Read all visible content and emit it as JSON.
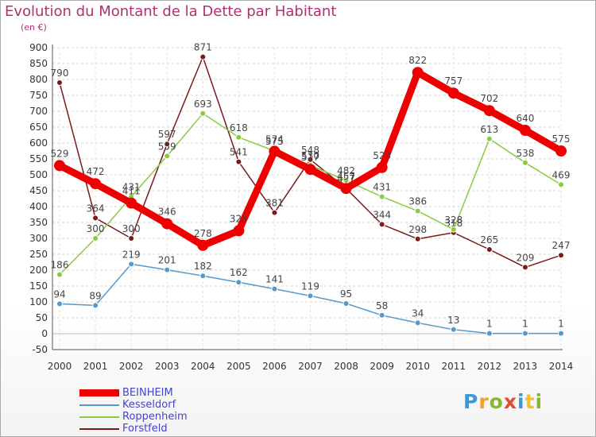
{
  "title": "Evolution du Montant de la Dette par Habitant",
  "unit": "(en €)",
  "logo": {
    "letters": [
      "P",
      "r",
      "o",
      "x",
      "i",
      "t",
      "i"
    ]
  },
  "chart_data": {
    "type": "line",
    "title": "Evolution du Montant de la Dette par Habitant",
    "ylabel": "(en €)",
    "xlabel": "",
    "ylim": [
      -50,
      900
    ],
    "grid": true,
    "legend": "bottom-left",
    "x": [
      "2000",
      "2001",
      "2002",
      "2003",
      "2004",
      "2005",
      "2006",
      "2007",
      "2008",
      "2009",
      "2010",
      "2011",
      "2012",
      "2013",
      "2014"
    ],
    "yticks": [
      -50,
      0,
      50,
      100,
      150,
      200,
      250,
      300,
      350,
      400,
      450,
      500,
      550,
      600,
      650,
      700,
      750,
      800,
      850,
      900
    ],
    "series": [
      {
        "name": "Forstfeld",
        "color": "#7a1a1a",
        "values": [
          790,
          364,
          300,
          597,
          871,
          541,
          381,
          548,
          457,
          344,
          298,
          318,
          265,
          209,
          247
        ]
      },
      {
        "name": "Roppenheim",
        "color": "#88cc44",
        "values": [
          186,
          300,
          431,
          559,
          693,
          618,
          575,
          530,
          482,
          431,
          386,
          328,
          613,
          538,
          469
        ]
      },
      {
        "name": "Kesseldorf",
        "color": "#5599cc",
        "values": [
          94,
          89,
          219,
          201,
          182,
          162,
          141,
          119,
          95,
          58,
          34,
          13,
          1,
          1,
          1
        ]
      },
      {
        "name": "BEINHEIM",
        "color": "#ee0000",
        "values": [
          529,
          472,
          411,
          346,
          278,
          324,
          574,
          517,
          457,
          523,
          822,
          757,
          702,
          640,
          575
        ]
      }
    ],
    "legend_order": [
      "BEINHEIM",
      "Kesseldorf",
      "Roppenheim",
      "Forstfeld"
    ]
  }
}
